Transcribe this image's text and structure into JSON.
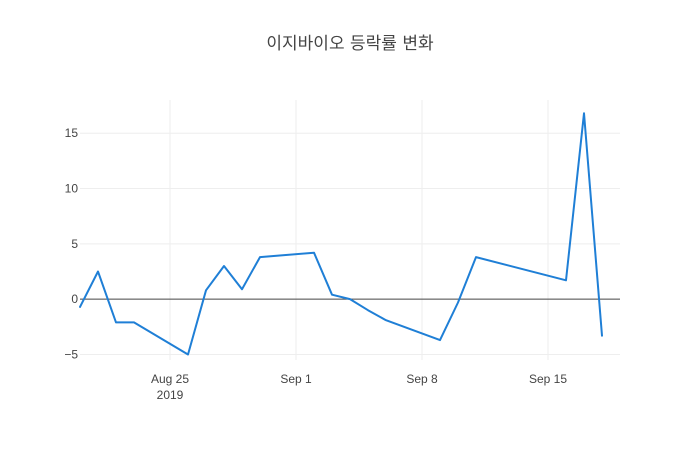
{
  "chart_data": {
    "type": "line",
    "title": "이지바이오 등락률 변화",
    "xlabel": "",
    "ylabel": "",
    "x_range": [
      "2019-08-20",
      "2019-09-19"
    ],
    "ylim": [
      -5.5,
      18
    ],
    "x_ticks": [
      {
        "date": "2019-08-25",
        "label": "Aug 25",
        "sublabel": "2019"
      },
      {
        "date": "2019-09-01",
        "label": "Sep 1"
      },
      {
        "date": "2019-09-08",
        "label": "Sep 8"
      },
      {
        "date": "2019-09-15",
        "label": "Sep 15"
      }
    ],
    "y_ticks": [
      {
        "value": -5,
        "label": "−5"
      },
      {
        "value": 0,
        "label": "0"
      },
      {
        "value": 5,
        "label": "5"
      },
      {
        "value": 10,
        "label": "10"
      },
      {
        "value": 15,
        "label": "15"
      }
    ],
    "grid": true,
    "zeroline": true,
    "colors": {
      "line": "#1f7fd6",
      "grid": "#eeeeee",
      "zeroline": "#444444",
      "text": "#444444"
    },
    "series": [
      {
        "x": [
          "2019-08-20",
          "2019-08-21",
          "2019-08-22",
          "2019-08-23",
          "2019-08-26",
          "2019-08-27",
          "2019-08-28",
          "2019-08-29",
          "2019-08-30",
          "2019-09-02",
          "2019-09-03",
          "2019-09-04",
          "2019-09-05",
          "2019-09-06",
          "2019-09-09",
          "2019-09-10",
          "2019-09-11",
          "2019-09-16",
          "2019-09-17",
          "2019-09-18"
        ],
        "y": [
          -0.7,
          2.5,
          -2.1,
          -2.1,
          -5.0,
          0.8,
          3.0,
          0.9,
          3.8,
          4.2,
          0.4,
          0.0,
          -1.0,
          -1.9,
          -3.7,
          -0.3,
          3.8,
          1.7,
          16.8,
          -3.3
        ]
      }
    ]
  }
}
